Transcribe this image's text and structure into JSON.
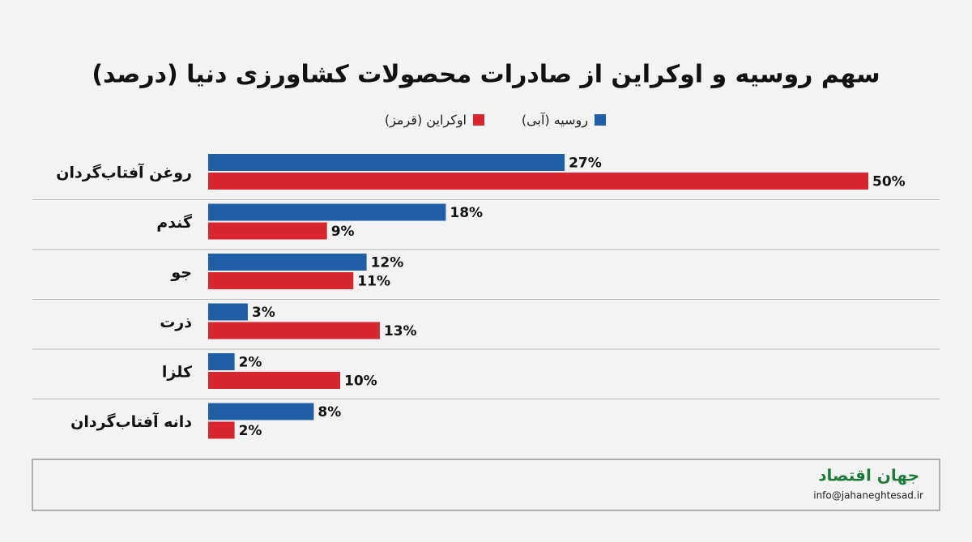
{
  "chart_data": {
    "type": "hbar",
    "title": "سهم روسیه و اوکراین از صادرات محصولات کشاورزی دنیا (درصد)",
    "categories": [
      "روغن آفتاب‌گردان",
      "گندم",
      "جو",
      "ذرت",
      "کلزا",
      "دانه آفتاب‌گردان"
    ],
    "series": [
      {
        "name": "روسیه (آبی)",
        "color": "#1f5fa8",
        "values": [
          27,
          18,
          12,
          3,
          2,
          8
        ],
        "value_labels": [
          "27%",
          "18%",
          "12%",
          "3%",
          "2%",
          "8%"
        ]
      },
      {
        "name": "اوکراین (قرمز)",
        "color": "#d9262e",
        "values": [
          50,
          9,
          11,
          13,
          10,
          2
        ],
        "value_labels": [
          "50%",
          "9%",
          "11%",
          "13%",
          "10%",
          "2%"
        ]
      }
    ],
    "xlim": [
      0,
      50
    ]
  },
  "footer": {
    "logo": "جهان اقتصاد",
    "email": "info@jahaneghtesad.ir"
  }
}
